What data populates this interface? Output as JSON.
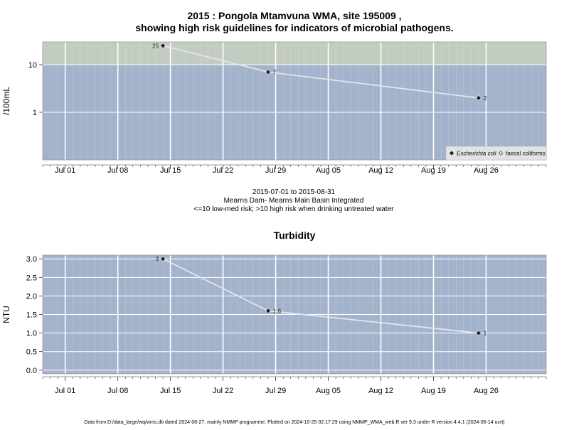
{
  "page": {
    "title_line1": "2015 : Pongola Mtamvuna WMA, site 195009 ,",
    "title_line2": "showing high risk guidelines for indicators of microbial pathogens.",
    "date_range": "2015-07-01 to 2015-08-31",
    "site_name": "Mearns Dam- Mearns Main Basin Integrated",
    "guideline_note": "<=10 low-med risk; >10 high risk when drinking untreated water",
    "footer": "Data from D:/data_large/wq/wms.db dated 2024-08-27, mainly NMMP programme. Plotted on 2024-10-25 02:17:29 using NMMP_WMA_web.R ver 9.3 under R version 4.4.1 (2024-06-14 ucrt)"
  },
  "colors": {
    "plot_bg": "#a3b3cc",
    "high_risk_band": "#c3ccc1",
    "grid": "#ffffff",
    "line": "#e4e4ee",
    "marker": "#222222",
    "legend_bg": "#e3e3e3"
  },
  "chart_data": [
    {
      "type": "line",
      "title": "",
      "ylabel": "/100mL",
      "xlabel": "",
      "yscale": "log",
      "ylim": [
        0.1,
        30
      ],
      "xlim": [
        "2015-06-28",
        "2015-09-03"
      ],
      "high_risk_threshold": 10,
      "x_ticks": [
        "Jul 01",
        "Jul 08",
        "Jul 15",
        "Jul 22",
        "Jul 29",
        "Aug 05",
        "Aug 12",
        "Aug 19",
        "Aug 26"
      ],
      "y_ticks": [
        "1",
        "10"
      ],
      "grid": true,
      "legend_position": "bottom-right",
      "series": [
        {
          "name": "Escherichia coli",
          "marker": "filled-diamond",
          "x": [
            "2015-07-14",
            "2015-07-28",
            "2015-08-25"
          ],
          "y": [
            25,
            7,
            2
          ],
          "labels": [
            "25",
            "7",
            "2"
          ]
        },
        {
          "name": "faecal coliforms",
          "marker": "open-diamond",
          "x": [],
          "y": [],
          "labels": []
        }
      ]
    },
    {
      "type": "line",
      "title": "Turbidity",
      "ylabel": "NTU",
      "xlabel": "",
      "ylim": [
        -0.1,
        3.1
      ],
      "xlim": [
        "2015-06-28",
        "2015-09-03"
      ],
      "x_ticks": [
        "Jul 01",
        "Jul 08",
        "Jul 15",
        "Jul 22",
        "Jul 29",
        "Aug 05",
        "Aug 12",
        "Aug 19",
        "Aug 26"
      ],
      "y_ticks": [
        "0.0",
        "0.5",
        "1.0",
        "1.5",
        "2.0",
        "2.5",
        "3.0"
      ],
      "grid": true,
      "series": [
        {
          "x": [
            "2015-07-14",
            "2015-07-28",
            "2015-08-25"
          ],
          "y": [
            3,
            1.6,
            1
          ],
          "labels": [
            "3",
            "1.6",
            "1"
          ]
        }
      ]
    }
  ]
}
